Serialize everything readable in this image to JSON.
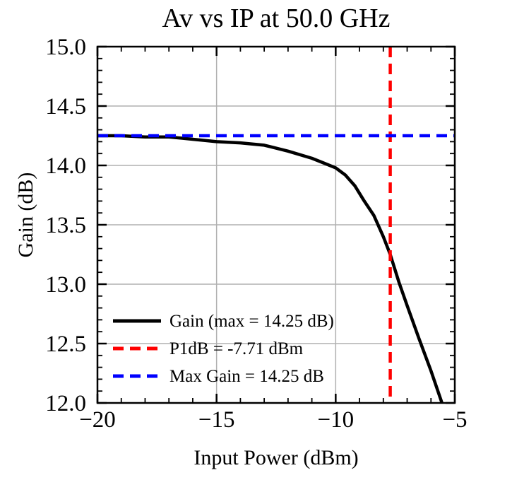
{
  "figure": {
    "background": "#ffffff",
    "spine_color": "#000000",
    "tick_color": "#000000"
  },
  "chart_data": {
    "type": "line",
    "title": "Av vs IP at 50.0 GHz",
    "xlabel": "Input Power (dBm)",
    "ylabel": "Gain (dB)",
    "xlim": [
      -20,
      -5
    ],
    "ylim": [
      12.0,
      15.0
    ],
    "x_major_ticks": [
      -20,
      -15,
      -10,
      -5
    ],
    "x_major_tick_labels": [
      "−20",
      "−15",
      "−10",
      "−5"
    ],
    "x_minor_step": 1,
    "y_major_ticks": [
      12.0,
      12.5,
      13.0,
      13.5,
      14.0,
      14.5,
      15.0
    ],
    "y_major_tick_labels": [
      "12.0",
      "12.5",
      "13.0",
      "13.5",
      "14.0",
      "14.5",
      "15.0"
    ],
    "y_minor_step": 0.1,
    "grid": true,
    "grid_color": "#b0b0b0",
    "series": [
      {
        "name": "Gain (max = 14.25 dB)",
        "kind": "line",
        "color": "#000000",
        "style": "solid",
        "points": [
          [
            -20,
            14.25
          ],
          [
            -19,
            14.25
          ],
          [
            -18,
            14.24
          ],
          [
            -17,
            14.24
          ],
          [
            -16,
            14.22
          ],
          [
            -15,
            14.2
          ],
          [
            -14,
            14.19
          ],
          [
            -13,
            14.17
          ],
          [
            -12,
            14.12
          ],
          [
            -11,
            14.06
          ],
          [
            -10.5,
            14.02
          ],
          [
            -10,
            13.98
          ],
          [
            -9.6,
            13.92
          ],
          [
            -9.2,
            13.83
          ],
          [
            -8.8,
            13.7
          ],
          [
            -8.4,
            13.58
          ],
          [
            -8.0,
            13.4
          ],
          [
            -7.71,
            13.25
          ],
          [
            -7.35,
            13.02
          ],
          [
            -7.0,
            12.82
          ],
          [
            -6.5,
            12.54
          ],
          [
            -6.0,
            12.27
          ],
          [
            -5.54,
            12.0
          ]
        ]
      },
      {
        "name": "P1dB = -7.71 dBm",
        "kind": "vline",
        "color": "#ff0000",
        "style": "dashed",
        "x": -7.71
      },
      {
        "name": "Max Gain = 14.25 dB",
        "kind": "hline",
        "color": "#0000ff",
        "style": "dashed",
        "y": 14.25
      }
    ],
    "legend": {
      "position": "lower left",
      "frame": false,
      "entries": [
        "Gain (max = 14.25 dB)",
        "P1dB = -7.71 dBm",
        "Max Gain = 14.25 dB"
      ]
    },
    "annotations": {
      "max_gain_db": 14.25,
      "p1db_dbm": -7.71,
      "frequency_ghz": 50.0
    }
  }
}
